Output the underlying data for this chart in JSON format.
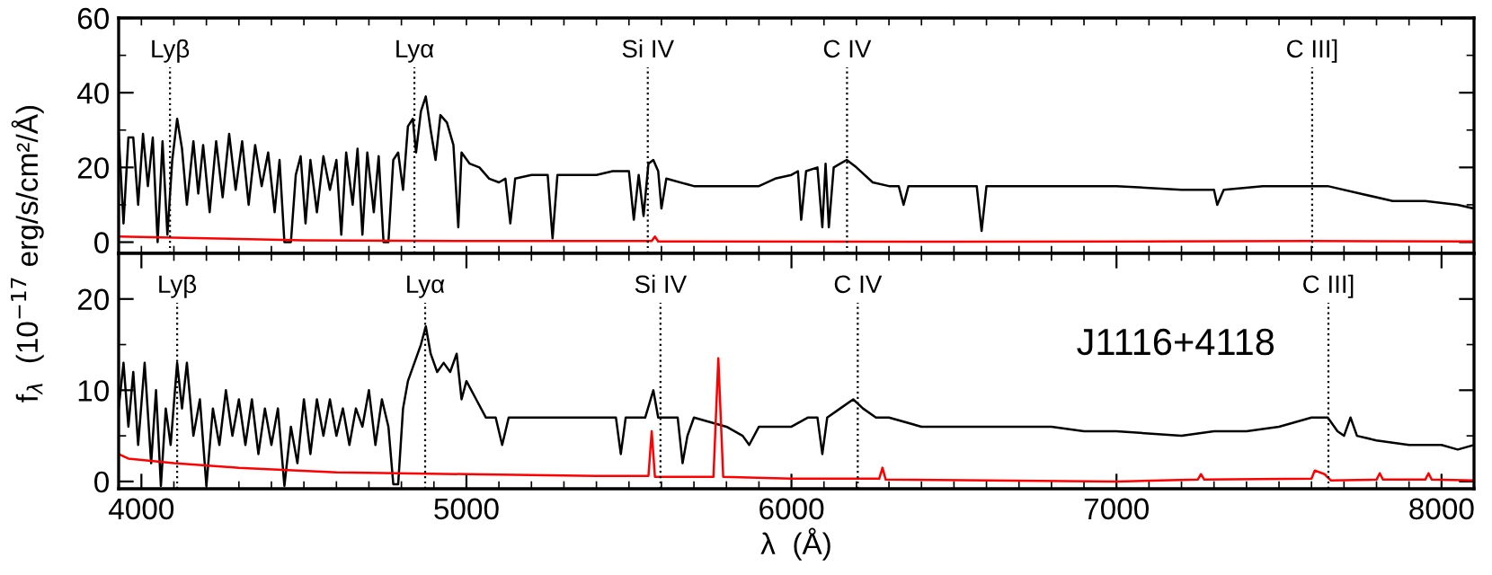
{
  "chart_data": [
    {
      "type": "line",
      "ylabel": "f$_{λ}$  (10$^{−17}$ erg/s/cm²/Å)",
      "xlim": [
        3930,
        8100
      ],
      "ylim": [
        -3,
        60
      ],
      "yticks": [
        0,
        {
          "value": 10,
          "label": null
        },
        20,
        {
          "value": 30,
          "label": null
        },
        40,
        {
          "value": 50,
          "label": null
        },
        60
      ],
      "xticks": [
        {
          "value": 4000,
          "label": null
        },
        {
          "value": 4100,
          "label": null
        },
        {
          "value": 4200,
          "label": null
        },
        {
          "value": 4300,
          "label": null
        },
        {
          "value": 4400,
          "label": null
        },
        {
          "value": 4500,
          "label": null
        },
        {
          "value": 4600,
          "label": null
        },
        {
          "value": 4700,
          "label": null
        },
        {
          "value": 4800,
          "label": null
        },
        {
          "value": 4900,
          "label": null
        },
        {
          "value": 5000,
          "label": null
        },
        {
          "value": 5100,
          "label": null
        },
        {
          "value": 5200,
          "label": null
        },
        {
          "value": 5300,
          "label": null
        },
        {
          "value": 5400,
          "label": null
        },
        {
          "value": 5500,
          "label": null
        },
        {
          "value": 5600,
          "label": null
        },
        {
          "value": 5700,
          "label": null
        },
        {
          "value": 5800,
          "label": null
        },
        {
          "value": 5900,
          "label": null
        },
        {
          "value": 6000,
          "label": null
        },
        {
          "value": 6100,
          "label": null
        },
        {
          "value": 6200,
          "label": null
        },
        {
          "value": 6300,
          "label": null
        },
        {
          "value": 6400,
          "label": null
        },
        {
          "value": 6500,
          "label": null
        },
        {
          "value": 6600,
          "label": null
        },
        {
          "value": 6700,
          "label": null
        },
        {
          "value": 6800,
          "label": null
        },
        {
          "value": 6900,
          "label": null
        },
        {
          "value": 7000,
          "label": null
        },
        {
          "value": 7100,
          "label": null
        },
        {
          "value": 7200,
          "label": null
        },
        {
          "value": 7300,
          "label": null
        },
        {
          "value": 7400,
          "label": null
        },
        {
          "value": 7500,
          "label": null
        },
        {
          "value": 7600,
          "label": null
        },
        {
          "value": 7700,
          "label": null
        },
        {
          "value": 7800,
          "label": null
        },
        {
          "value": 7900,
          "label": null
        },
        {
          "value": 8000,
          "label": null
        },
        {
          "value": 8100,
          "label": null
        }
      ],
      "tick_labels": "y",
      "series": [
        {
          "color": "#000000",
          "x": [
            3930,
            3945,
            3960,
            3975,
            3990,
            4005,
            4020,
            4035,
            4050,
            4065,
            4080,
            4095,
            4110,
            4125,
            4140,
            4160,
            4175,
            4190,
            4210,
            4230,
            4250,
            4270,
            4290,
            4310,
            4330,
            4350,
            4370,
            4390,
            4410,
            4425,
            4440,
            4460,
            4475,
            4490,
            4505,
            4520,
            4540,
            4560,
            4580,
            4600,
            4615,
            4630,
            4650,
            4665,
            4680,
            4695,
            4715,
            4730,
            4745,
            4760,
            4775,
            4790,
            4805,
            4820,
            4835,
            4845,
            4860,
            4875,
            4890,
            4905,
            4920,
            4940,
            4960,
            4975,
            4985,
            5010,
            5040,
            5070,
            5100,
            5120,
            5135,
            5150,
            5200,
            5250,
            5265,
            5280,
            5350,
            5400,
            5450,
            5500,
            5515,
            5530,
            5545,
            5560,
            5575,
            5590,
            5600,
            5615,
            5700,
            5800,
            5900,
            5950,
            6000,
            6020,
            6030,
            6045,
            6080,
            6095,
            6105,
            6115,
            6130,
            6150,
            6170,
            6200,
            6250,
            6300,
            6330,
            6345,
            6360,
            6500,
            6570,
            6585,
            6600,
            6800,
            7000,
            7200,
            7300,
            7310,
            7330,
            7450,
            7600,
            7650,
            7750,
            7850,
            7950,
            8050,
            8100
          ],
          "values": [
            29,
            5,
            28,
            28,
            10,
            29,
            15,
            28,
            0,
            27,
            2,
            22,
            33,
            25,
            10,
            27,
            13,
            26,
            8,
            27,
            12,
            29,
            14,
            27,
            10,
            26,
            15,
            24,
            8,
            22,
            0,
            0,
            18,
            23,
            5,
            22,
            8,
            23,
            14,
            22,
            2,
            24,
            10,
            25,
            2,
            24,
            8,
            23,
            0,
            0,
            22,
            24,
            14,
            31,
            33,
            24,
            35,
            39,
            30,
            22,
            34,
            32,
            26,
            4,
            24,
            21,
            20,
            17,
            16,
            17,
            5,
            17,
            18,
            18,
            1,
            18,
            18,
            18,
            19,
            19,
            6,
            18,
            7,
            21,
            22,
            19,
            9,
            17,
            15,
            15,
            15,
            17,
            18,
            19,
            6,
            19,
            20,
            4,
            21,
            4,
            20,
            21,
            22,
            20,
            16,
            15,
            15,
            10,
            15,
            15,
            15,
            3,
            15,
            15,
            15,
            14,
            14,
            10,
            14,
            15,
            15,
            15,
            13,
            11,
            11,
            10,
            9
          ]
        },
        {
          "color": "#ff0000",
          "x": [
            3930,
            4200,
            4500,
            5000,
            5570,
            5580,
            5590,
            6500,
            7600,
            8100
          ],
          "values": [
            1.5,
            1,
            0.5,
            0.3,
            0.3,
            1.5,
            0.2,
            0.1,
            0.3,
            0.2
          ]
        }
      ],
      "ref_lines": [
        {
          "axis": "x",
          "value": 4088,
          "label": "Lyβ",
          "line_style": "dotted",
          "color": "#000000"
        },
        {
          "axis": "x",
          "value": 4840,
          "label": "Lyα",
          "line_style": "dotted",
          "color": "#000000"
        },
        {
          "axis": "x",
          "value": 5558,
          "label": "Si IV",
          "line_style": "dotted",
          "color": "#000000"
        },
        {
          "axis": "x",
          "value": 6171,
          "label": "C IV",
          "line_style": "dotted",
          "color": "#000000"
        },
        {
          "axis": "x",
          "value": 7602,
          "label": "C III]",
          "line_style": "dotted",
          "color": "#000000"
        }
      ]
    },
    {
      "type": "line",
      "xlabel": "λ  (Å)",
      "xlim": [
        3930,
        8100
      ],
      "ylim": [
        -0.8,
        25
      ],
      "yticks": [
        0,
        {
          "value": 5,
          "label": null
        },
        10,
        {
          "value": 15,
          "label": null
        },
        20
      ],
      "xticks": [
        {
          "value": 4000,
          "label": "4000"
        },
        {
          "value": 4100,
          "label": null
        },
        {
          "value": 4200,
          "label": null
        },
        {
          "value": 4300,
          "label": null
        },
        {
          "value": 4400,
          "label": null
        },
        {
          "value": 4500,
          "label": null
        },
        {
          "value": 4600,
          "label": null
        },
        {
          "value": 4700,
          "label": null
        },
        {
          "value": 4800,
          "label": null
        },
        {
          "value": 4900,
          "label": null
        },
        {
          "value": 5000,
          "label": "5000"
        },
        {
          "value": 5100,
          "label": null
        },
        {
          "value": 5200,
          "label": null
        },
        {
          "value": 5300,
          "label": null
        },
        {
          "value": 5400,
          "label": null
        },
        {
          "value": 5500,
          "label": null
        },
        {
          "value": 5600,
          "label": null
        },
        {
          "value": 5700,
          "label": null
        },
        {
          "value": 5800,
          "label": null
        },
        {
          "value": 5900,
          "label": null
        },
        {
          "value": 6000,
          "label": "6000"
        },
        {
          "value": 6100,
          "label": null
        },
        {
          "value": 6200,
          "label": null
        },
        {
          "value": 6300,
          "label": null
        },
        {
          "value": 6400,
          "label": null
        },
        {
          "value": 6500,
          "label": null
        },
        {
          "value": 6600,
          "label": null
        },
        {
          "value": 6700,
          "label": null
        },
        {
          "value": 6800,
          "label": null
        },
        {
          "value": 6900,
          "label": null
        },
        {
          "value": 7000,
          "label": "7000"
        },
        {
          "value": 7100,
          "label": null
        },
        {
          "value": 7200,
          "label": null
        },
        {
          "value": 7300,
          "label": null
        },
        {
          "value": 7400,
          "label": null
        },
        {
          "value": 7500,
          "label": null
        },
        {
          "value": 7600,
          "label": null
        },
        {
          "value": 7700,
          "label": null
        },
        {
          "value": 7800,
          "label": null
        },
        {
          "value": 7900,
          "label": null
        },
        {
          "value": 8000,
          "label": "8000"
        },
        {
          "value": 8100,
          "label": null
        }
      ],
      "annotations": [
        "J1116+4118"
      ],
      "series": [
        {
          "color": "#000000",
          "x": [
            3930,
            3945,
            3960,
            3975,
            3990,
            4010,
            4030,
            4045,
            4060,
            4075,
            4090,
            4110,
            4125,
            4140,
            4160,
            4180,
            4200,
            4220,
            4240,
            4260,
            4280,
            4300,
            4320,
            4340,
            4360,
            4380,
            4400,
            4420,
            4440,
            4460,
            4480,
            4500,
            4520,
            4540,
            4560,
            4580,
            4600,
            4620,
            4640,
            4660,
            4680,
            4700,
            4720,
            4740,
            4760,
            4775,
            4790,
            4805,
            4820,
            4840,
            4860,
            4875,
            4890,
            4910,
            4930,
            4950,
            4970,
            4985,
            5000,
            5030,
            5060,
            5090,
            5110,
            5130,
            5200,
            5300,
            5400,
            5460,
            5475,
            5490,
            5550,
            5575,
            5590,
            5620,
            5650,
            5665,
            5680,
            5700,
            5800,
            5850,
            5870,
            5900,
            6000,
            6050,
            6080,
            6095,
            6110,
            6150,
            6190,
            6220,
            6260,
            6300,
            6400,
            6500,
            6600,
            6700,
            6800,
            6900,
            7000,
            7200,
            7300,
            7400,
            7500,
            7600,
            7650,
            7680,
            7700,
            7720,
            7740,
            7800,
            7900,
            8000,
            8050,
            8100
          ],
          "values": [
            8,
            13,
            6,
            12,
            4,
            13,
            2,
            10,
            -0.5,
            8,
            4,
            13,
            8,
            13,
            5,
            9,
            -0.5,
            8,
            4,
            10,
            5,
            9,
            4,
            9,
            3,
            8,
            4,
            8,
            -0.5,
            6,
            2,
            9,
            3,
            9,
            5,
            9,
            5,
            8,
            4,
            8,
            6,
            10,
            4,
            9,
            6,
            -0.3,
            -0.3,
            8,
            11,
            13,
            15,
            17,
            14,
            12,
            13,
            12,
            14,
            9,
            11,
            9,
            7,
            7,
            4,
            7,
            7,
            7,
            7,
            7,
            3,
            7,
            7,
            10,
            7,
            7,
            7,
            2,
            5,
            7,
            6,
            5,
            4,
            6,
            6,
            7,
            7,
            3,
            7,
            8,
            9,
            8,
            7,
            7,
            6,
            6,
            6,
            6,
            6,
            5.5,
            5.5,
            5,
            5.5,
            5.5,
            6,
            7,
            7,
            5.5,
            5,
            7,
            5,
            4.5,
            4,
            4,
            3.5,
            4
          ]
        },
        {
          "color": "#ff0000",
          "x": [
            3930,
            3960,
            4100,
            4300,
            4600,
            5000,
            5400,
            5560,
            5570,
            5580,
            5760,
            5775,
            5790,
            6000,
            6270,
            6280,
            6290,
            7000,
            7250,
            7260,
            7270,
            7600,
            7610,
            7640,
            7660,
            7800,
            7810,
            7820,
            7950,
            7960,
            7970,
            8100
          ],
          "values": [
            3,
            2.5,
            2,
            1.5,
            1,
            0.8,
            0.6,
            0.6,
            5.5,
            0.5,
            0.5,
            13.5,
            0.5,
            0.3,
            0.3,
            1.5,
            0.2,
            0,
            0.2,
            0.8,
            0.2,
            0.3,
            1.2,
            0.8,
            0.1,
            0.2,
            0.9,
            0.2,
            0.2,
            0.9,
            0.2,
            0.1
          ]
        }
      ],
      "ref_lines": [
        {
          "axis": "x",
          "value": 4110,
          "label": "Lyβ",
          "line_style": "dotted",
          "color": "#000000"
        },
        {
          "axis": "x",
          "value": 4873,
          "label": "Lyα",
          "line_style": "dotted",
          "color": "#000000"
        },
        {
          "axis": "x",
          "value": 5597,
          "label": "Si IV",
          "line_style": "dotted",
          "color": "#000000"
        },
        {
          "axis": "x",
          "value": 6204,
          "label": "C IV",
          "line_style": "dotted",
          "color": "#000000"
        },
        {
          "axis": "x",
          "value": 7652,
          "label": "C III]",
          "line_style": "dotted",
          "color": "#000000"
        }
      ]
    }
  ]
}
